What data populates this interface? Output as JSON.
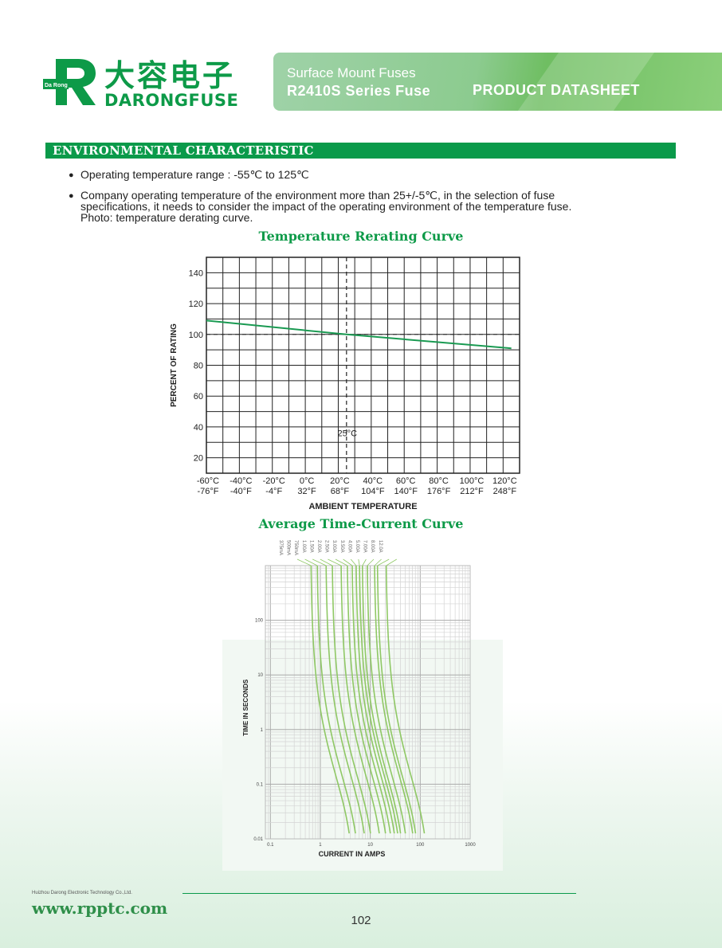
{
  "header": {
    "logo_small": "Da Rong",
    "logo_cn": "大容电子",
    "logo_en": "DARONGFUSE",
    "banner_sub": "Surface Mount  Fuses",
    "banner_title": "R2410S Series Fuse",
    "banner_right": "PRODUCT DATASHEET",
    "colors": {
      "brand_green": "#0d9a48",
      "banner_green": "#8ccb8f"
    }
  },
  "section": {
    "title": "ENVIRONMENTAL CHARACTERISTIC",
    "bullets": [
      "Operating temperature range : -55℃ to 125℃",
      "Company operating temperature of the environment more than 25+/-5℃, in the selection of fuse specifications, it needs to consider the impact of the operating environment of the temperature fuse.  Photo: temperature derating curve."
    ]
  },
  "chart_data": [
    {
      "type": "line",
      "title": "Temperature Rerating Curve",
      "xlabel": "AMBIENT TEMPERATURE",
      "ylabel": "PERCENT OF RATING",
      "x_ticks": [
        "-60°C",
        "-40°C",
        "-20°C",
        "0°C",
        "20°C",
        "40°C",
        "60°C",
        "80°C",
        "100°C",
        "120°C"
      ],
      "x_ticks_f": [
        "-76°F",
        "-40°F",
        "-4°F",
        "32°F",
        "68°F",
        "104°F",
        "140°F",
        "176°F",
        "212°F",
        "248°F"
      ],
      "y_ticks": [
        20,
        40,
        60,
        80,
        100,
        120,
        140
      ],
      "xlim": [
        -60,
        120
      ],
      "ylim": [
        10,
        150
      ],
      "grid": true,
      "reference_label": "25°C",
      "reference_x": 25,
      "reference_y": 100,
      "series": [
        {
          "x": [
            -60,
            25,
            125
          ],
          "y": [
            109,
            100,
            91
          ]
        }
      ]
    },
    {
      "type": "line",
      "title": "Average Time-Current Curve",
      "xlabel": "CURRENT IN AMPS",
      "ylabel": "TIME IN SECONDS",
      "x_scale": "log",
      "y_scale": "log",
      "x_ticks": [
        "0.1",
        "1",
        "10",
        "100",
        "1000"
      ],
      "y_ticks": [
        "0.01",
        "0.1",
        "1",
        "10",
        "100"
      ],
      "grid": true,
      "series_labels": [
        "375mA",
        "500mA",
        "750mA",
        "1.00A",
        "1.50A",
        "2.00A",
        "2.50A",
        "3.00A",
        "3.50A",
        "4.00A",
        "5.00A",
        "7.00A",
        "8.00A",
        "12.0A"
      ]
    }
  ],
  "footer": {
    "company": "Huizhou Darong Electronic Technology Co.,Ltd.",
    "website": "www.rpptc.com",
    "page": "102"
  }
}
